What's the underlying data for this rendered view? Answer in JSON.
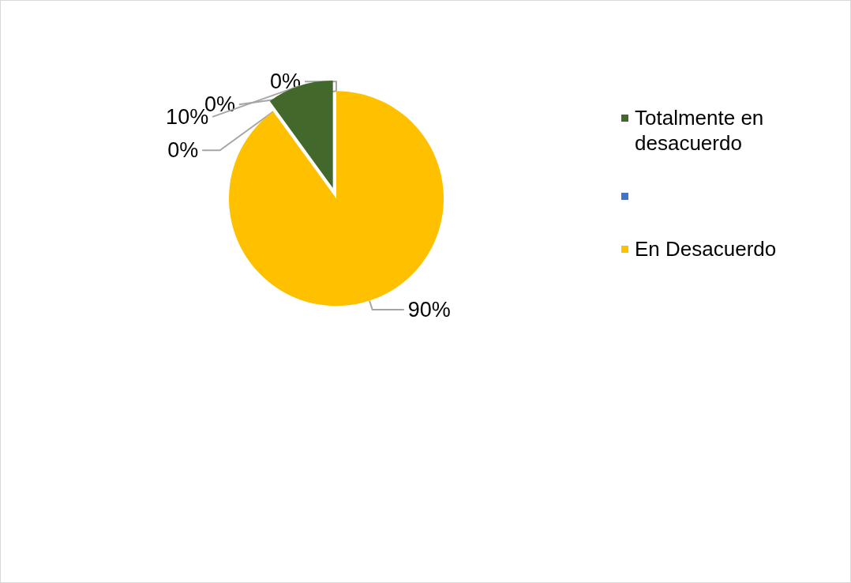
{
  "chart_data": {
    "type": "pie",
    "categories": [
      "Totalmente en desacuerdo",
      null,
      "En Desacuerdo",
      null,
      null
    ],
    "values": [
      10,
      0,
      90,
      0,
      0
    ],
    "value_labels": [
      "10%",
      "0%",
      "90%",
      "0%",
      "0%"
    ],
    "colors": [
      "#43682b",
      "#4472c4",
      "#ffc000",
      "#ed7d31",
      "#a5a5a5"
    ],
    "legend": "right"
  }
}
